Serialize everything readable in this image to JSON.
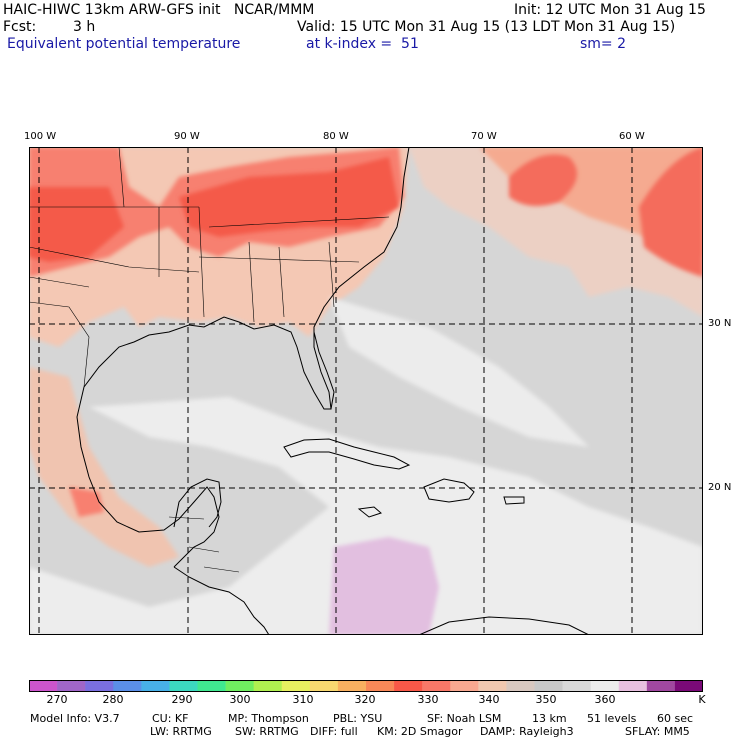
{
  "header": {
    "title": "HAIC-HIWC 13km ARW-GFS init   NCAR/MMM",
    "init": "Init: 12 UTC Mon 31 Aug 15",
    "fcst_label": "Fcst:",
    "fcst_value": "3 h",
    "valid": "Valid: 15 UTC Mon 31 Aug 15 (13 LDT Mon 31 Aug 15)",
    "field": "Equivalent potential temperature",
    "level": "at k-index =  51",
    "smooth": "sm= 2"
  },
  "map": {
    "lon_labels": [
      "100 W",
      "90 W",
      "80 W",
      "70 W",
      "60 W"
    ],
    "lat_labels": [
      "30 N",
      "20 N"
    ]
  },
  "colorbar": {
    "unit": "K",
    "tick_labels": [
      "270",
      "280",
      "290",
      "300",
      "310",
      "320",
      "330",
      "340",
      "350",
      "360"
    ],
    "colors": [
      "#cc55cc",
      "#a066c8",
      "#7a6fe0",
      "#5b8fe8",
      "#48b0e8",
      "#3cd8c0",
      "#40e890",
      "#70ee60",
      "#b0f050",
      "#e8f060",
      "#f8d870",
      "#f8b060",
      "#f88858",
      "#f85848",
      "#f87868",
      "#f8a890",
      "#f0c8b0",
      "#d8c8c0",
      "#c8c8c8",
      "#d8d8d8",
      "#ececec",
      "#e8c0e0",
      "#a048a0",
      "#7a0a78"
    ]
  },
  "model_info": {
    "line1": [
      "Model Info: V3.7",
      "CU: KF",
      "MP: Thompson",
      "PBL: YSU",
      "SF: Noah LSM",
      "13 km",
      "51 levels",
      "60 sec"
    ],
    "line2": [
      "LW: RRTMG",
      "SW: RRTMG",
      "DIFF: full",
      "KM: 2D Smagor",
      "DAMP: Rayleigh3",
      "SFLAY: MM5"
    ]
  }
}
